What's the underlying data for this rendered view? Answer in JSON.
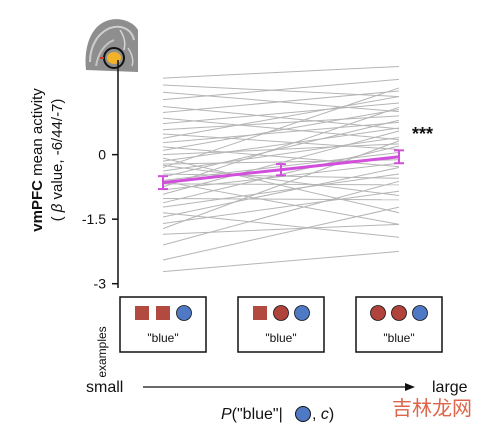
{
  "chart_data": {
    "type": "line",
    "y_axis": {
      "label_bold": "vmPFC",
      "label_rest": "mean activity",
      "label_line2_pre": "(",
      "label_beta": "β",
      "label_line2_post": " value, -6/44/-7)",
      "ticks": [
        0,
        -1.5,
        -3
      ],
      "tick_labels": [
        "0",
        "-1.5",
        "-3"
      ],
      "ylim": [
        -3.1,
        2.2
      ]
    },
    "x_positions": [
      1,
      2,
      3
    ],
    "mean_series": {
      "values": [
        -0.65,
        -0.35,
        -0.05
      ],
      "errors": [
        0.15,
        0.13,
        0.15
      ],
      "color": "#d24fdc"
    },
    "significance": "***",
    "subject_lines": [
      [
        -2.72,
        -2.25
      ],
      [
        -2.45,
        -1.22
      ],
      [
        -2.1,
        -0.62
      ],
      [
        -1.85,
        -1.62
      ],
      [
        -1.72,
        0.32
      ],
      [
        -1.6,
        -0.85
      ],
      [
        -1.45,
        -0.3
      ],
      [
        -1.35,
        -1.92
      ],
      [
        -1.22,
        -0.45
      ],
      [
        -1.12,
        0.2
      ],
      [
        -1.02,
        -1.05
      ],
      [
        -0.92,
        0.55
      ],
      [
        -0.82,
        -0.2
      ],
      [
        -0.75,
        1.1
      ],
      [
        -0.68,
        -0.7
      ],
      [
        -0.6,
        0.05
      ],
      [
        -0.52,
        0.8
      ],
      [
        -0.45,
        -0.55
      ],
      [
        -0.38,
        0.4
      ],
      [
        -0.3,
        1.55
      ],
      [
        -0.22,
        -0.12
      ],
      [
        -0.15,
        0.62
      ],
      [
        -0.08,
        -1.35
      ],
      [
        0.0,
        0.25
      ],
      [
        0.1,
        1.05
      ],
      [
        0.18,
        -0.28
      ],
      [
        0.28,
        0.75
      ],
      [
        0.38,
        1.35
      ],
      [
        0.48,
        0.12
      ],
      [
        0.58,
        0.9
      ],
      [
        0.72,
        1.2
      ],
      [
        0.85,
        0.35
      ],
      [
        0.98,
        1.48
      ],
      [
        1.12,
        0.6
      ],
      [
        1.28,
        1.75
      ],
      [
        1.45,
        1.0
      ],
      [
        1.62,
        1.35
      ],
      [
        1.78,
        2.05
      ],
      [
        -0.62,
        -1.62
      ],
      [
        -0.25,
        -0.95
      ]
    ],
    "xlabel_left": "small",
    "xlabel_right": "large",
    "colors": {
      "subject_line": "#b5b5b5",
      "square": "#b24a3f",
      "red_circle": "#b0443c",
      "blue_circle": "#4f79c4",
      "blob": "#f2b329"
    }
  },
  "examples": {
    "label": "examples",
    "panels": [
      {
        "shapes": [
          "square",
          "square",
          "blue-circle"
        ],
        "caption": "\"blue\""
      },
      {
        "shapes": [
          "square",
          "red-circle",
          "blue-circle"
        ],
        "caption": "\"blue\""
      },
      {
        "shapes": [
          "red-circle",
          "red-circle",
          "blue-circle"
        ],
        "caption": "\"blue\""
      }
    ]
  },
  "x_title": {
    "p": "P",
    "mid": "(\"blue\"|",
    "comma": ", ",
    "c": "c",
    "close": ")"
  },
  "watermark": "吉林龙网"
}
